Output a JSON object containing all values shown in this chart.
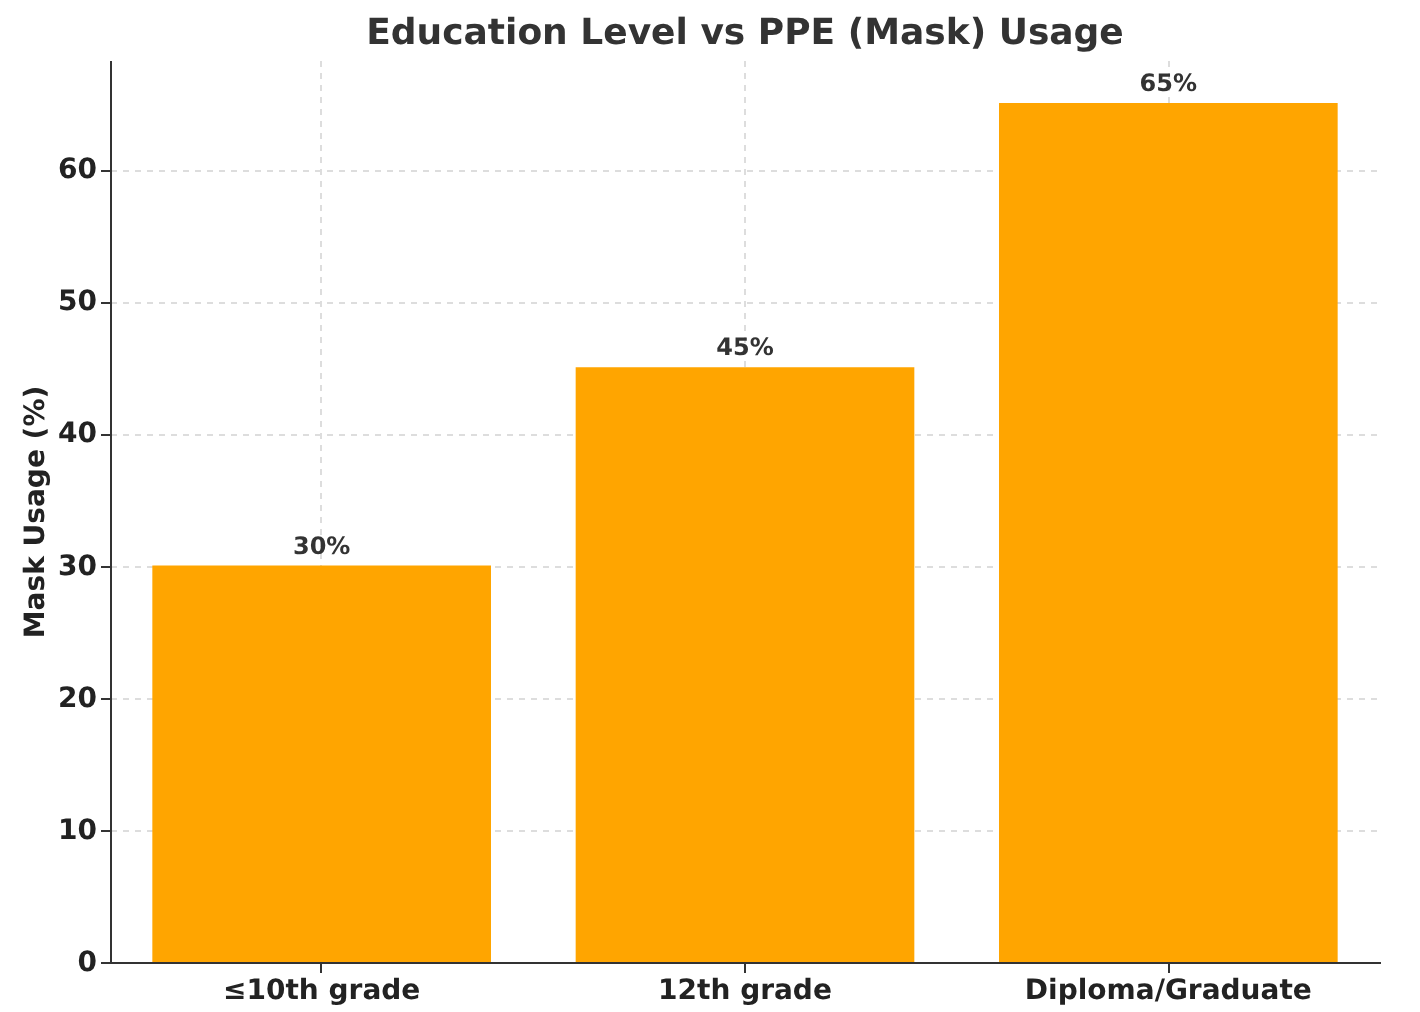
{
  "chart_data": {
    "type": "bar",
    "title": "Education Level vs PPE (Mask) Usage",
    "ylabel": "Mask Usage (%)",
    "categories": [
      "≤10th grade",
      "12th grade",
      "Diploma/Graduate"
    ],
    "values": [
      30,
      45,
      65
    ],
    "color": "#ffa500",
    "value_labels": [
      "30%",
      "45%",
      "65%"
    ],
    "ylim": [
      0,
      68.25
    ],
    "yticks": [
      0,
      10,
      20,
      30,
      40,
      50,
      60
    ],
    "grid": true
  }
}
